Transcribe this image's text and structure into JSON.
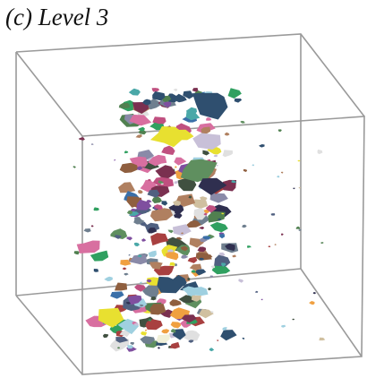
{
  "figure": {
    "title": "(c) Level 3"
  },
  "scene": {
    "background": "#ffffff",
    "box_edge_color": "#9a9a9a",
    "shard_palette": [
      "#2f4f6f",
      "#5f8f5f",
      "#7a3050",
      "#c8c0d8",
      "#3a6fa8",
      "#8f5f3f",
      "#d86fa0",
      "#4aa8a8",
      "#e8e030",
      "#7f4f9f",
      "#a84040",
      "#6f7f8f",
      "#2f2f4f",
      "#9fd0e0",
      "#b08060",
      "#508050",
      "#e0e0e0",
      "#c05080",
      "#506080",
      "#f0a040",
      "#405040",
      "#8a8aa8",
      "#30a060",
      "#d0c0a0"
    ]
  }
}
